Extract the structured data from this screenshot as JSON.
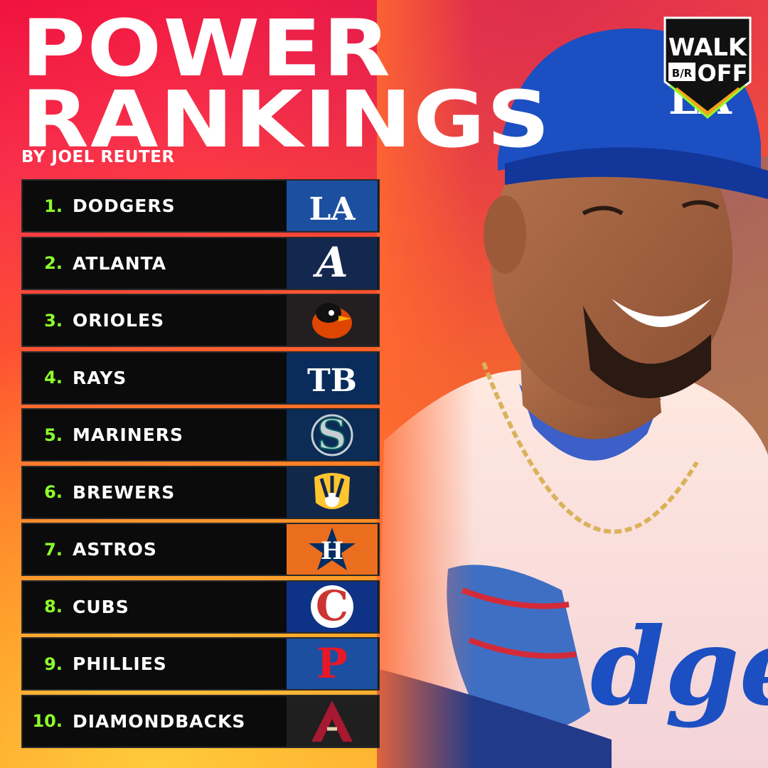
{
  "header": {
    "title_line1": "POWER",
    "title_line2": "RANKINGS",
    "byline": "BY JOEL REUTER"
  },
  "brand": {
    "walk": "WALK",
    "off": "OFF",
    "br": "B/R"
  },
  "rankings": [
    {
      "rank": "1.",
      "team": "DODGERS",
      "logo_text": "LA",
      "logo_bg": "#1c4fa0",
      "logo_fg": "#ffffff",
      "logo_icon": "la-logo"
    },
    {
      "rank": "2.",
      "team": "ATLANTA",
      "logo_text": "A",
      "logo_bg": "#13274f",
      "logo_fg": "#ffffff",
      "logo_icon": "braves-a-logo"
    },
    {
      "rank": "3.",
      "team": "ORIOLES",
      "logo_text": "",
      "logo_bg": "#231f20",
      "logo_fg": "#df4601",
      "logo_icon": "oriole-bird-logo"
    },
    {
      "rank": "4.",
      "team": "RAYS",
      "logo_text": "TB",
      "logo_bg": "#092c5c",
      "logo_fg": "#ffffff",
      "logo_icon": "tb-logo"
    },
    {
      "rank": "5.",
      "team": "MARINERS",
      "logo_text": "S",
      "logo_bg": "#0c2c56",
      "logo_fg": "#005c5c",
      "logo_icon": "mariners-s-logo"
    },
    {
      "rank": "6.",
      "team": "BREWERS",
      "logo_text": "",
      "logo_bg": "#12284b",
      "logo_fg": "#ffc52f",
      "logo_icon": "brewers-glove-logo"
    },
    {
      "rank": "7.",
      "team": "ASTROS",
      "logo_text": "H",
      "logo_bg": "#eb6e1f",
      "logo_fg": "#002d62",
      "logo_icon": "astros-star-logo"
    },
    {
      "rank": "8.",
      "team": "CUBS",
      "logo_text": "C",
      "logo_bg": "#0e3386",
      "logo_fg": "#cc3433",
      "logo_icon": "cubs-c-logo"
    },
    {
      "rank": "9.",
      "team": "PHILLIES",
      "logo_text": "P",
      "logo_bg": "#1c4fa0",
      "logo_fg": "#e81828",
      "logo_icon": "phillies-p-logo"
    },
    {
      "rank": "10.",
      "team": "DIAMONDBACKS",
      "logo_text": "A",
      "logo_bg": "#1f1f1f",
      "logo_fg": "#a71930",
      "logo_icon": "dbacks-a-logo"
    }
  ]
}
